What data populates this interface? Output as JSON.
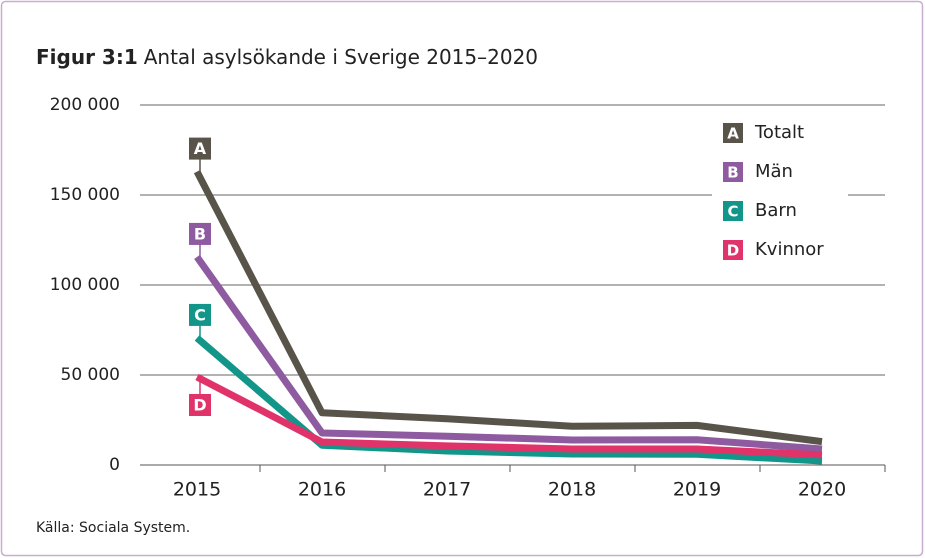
{
  "chart_data": {
    "type": "line",
    "figure_label": "Figur 3:1",
    "title": "Antal asylsökande i Sverige 2015–2020",
    "source": "Källa: Sociala System.",
    "categories": [
      "2015",
      "2016",
      "2017",
      "2018",
      "2019",
      "2020"
    ],
    "series": [
      {
        "name": "Totalt",
        "marker": "A",
        "color": "#58544a",
        "values": [
          163000,
          29000,
          25700,
          21500,
          22000,
          13000
        ]
      },
      {
        "name": "Män",
        "marker": "B",
        "color": "#8e5aa0",
        "values": [
          115600,
          17800,
          16000,
          13900,
          14000,
          8900
        ]
      },
      {
        "name": "Barn",
        "marker": "C",
        "color": "#12968a",
        "values": [
          70600,
          11000,
          7800,
          6100,
          6000,
          2200
        ]
      },
      {
        "name": "Kvinnor",
        "marker": "D",
        "color": "#e0336a",
        "values": [
          48900,
          12800,
          10600,
          8900,
          8900,
          5600
        ]
      }
    ],
    "ylim": [
      0,
      200000
    ],
    "yticks": [
      0,
      {
        "value": 50000,
        "label": "50 000"
      },
      {
        "value": 100000,
        "label": "100 000"
      },
      {
        "value": 150000,
        "label": "150 000"
      },
      {
        "value": 200000,
        "label": "200 000"
      }
    ],
    "grid": true,
    "legend": "upper-right"
  }
}
